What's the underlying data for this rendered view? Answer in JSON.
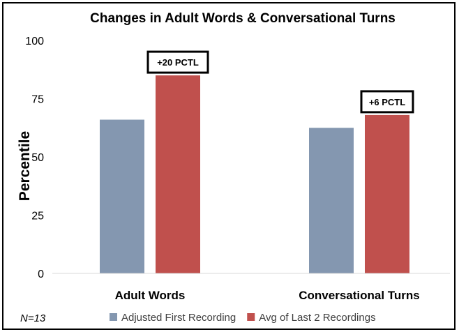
{
  "chart_data": {
    "type": "bar",
    "title": "Changes in Adult Words & Conversational Turns",
    "xlabel": "",
    "ylabel": "Percentile",
    "ylim": [
      0,
      100
    ],
    "yticks": [
      0,
      25,
      50,
      75,
      100
    ],
    "categories": [
      "Adult Words",
      "Conversational Turns"
    ],
    "series": [
      {
        "name": "Adjusted First Recording",
        "values": [
          66,
          62.5
        ],
        "color": "#8497b0"
      },
      {
        "name": "Avg of Last 2 Recordings",
        "values": [
          85,
          68
        ],
        "color": "#c0504d"
      }
    ],
    "annotations": [
      "+20 PCTL",
      "+6 PCTL"
    ],
    "note": "N=13",
    "grid": false,
    "legend": "bottom"
  }
}
